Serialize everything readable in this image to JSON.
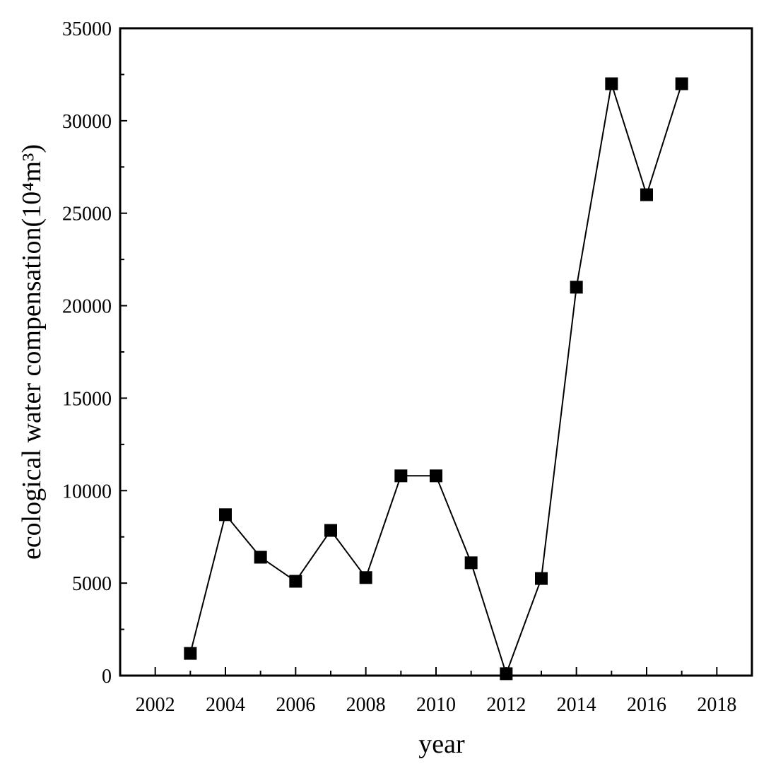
{
  "chart_data": {
    "type": "line",
    "title": "",
    "xlabel": "year",
    "ylabel": "ecological water compensation(10⁴m³)",
    "xlim": [
      2001,
      2019
    ],
    "ylim": [
      0,
      35000
    ],
    "x_ticks": [
      2002,
      2004,
      2006,
      2008,
      2010,
      2012,
      2014,
      2016,
      2018
    ],
    "y_ticks": [
      0,
      5000,
      10000,
      15000,
      20000,
      25000,
      30000,
      35000
    ],
    "grid": false,
    "legend": "none",
    "marker": "square",
    "color": "#000000",
    "series": [
      {
        "x": [
          2003,
          2004,
          2005,
          2006,
          2007,
          2008,
          2009,
          2010,
          2011,
          2012,
          2013,
          2014,
          2015,
          2016,
          2017
        ],
        "y": [
          1200,
          8700,
          6400,
          5100,
          7850,
          5300,
          10800,
          10800,
          6100,
          100,
          5250,
          21000,
          32000,
          26000,
          32000
        ]
      }
    ]
  }
}
